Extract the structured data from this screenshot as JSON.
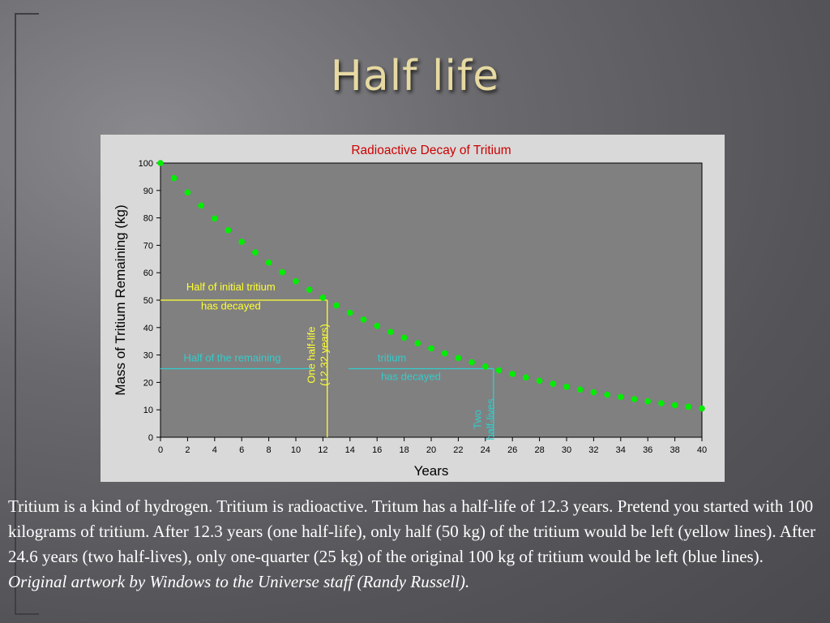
{
  "slide": {
    "title": "Half life",
    "paragraph": "Tritium is a kind of hydrogen. Tritium is radioactive. Tritum has a half-life of 12.3 years. Pretend you started with 100 kilograms of tritium. After 12.3 years (one half-life), only half (50 kg) of the tritium would be left (yellow lines). After 24.6 years (two half-lives), only one-quarter (25 kg) of the original 100 kg of tritium would be left (blue lines).",
    "credit": "Original artwork by Windows to the Universe staff (Randy Russell)."
  },
  "colors": {
    "points": "#00ee00",
    "yellow": "#ffff33",
    "blue": "#33cccc",
    "plot_bg": "#808080",
    "frame_bg": "#d9d9d9",
    "title": "#cc0000"
  },
  "chart_data": {
    "type": "scatter",
    "title": "Radioactive Decay of Tritium",
    "xlabel": "Years",
    "ylabel": "Mass of Tritium Remaining (kg)",
    "xlim": [
      0,
      40
    ],
    "ylim": [
      0,
      100
    ],
    "xticks": [
      0,
      2,
      4,
      6,
      8,
      10,
      12,
      14,
      16,
      18,
      20,
      22,
      24,
      26,
      28,
      30,
      32,
      34,
      36,
      38,
      40
    ],
    "yticks": [
      0,
      10,
      20,
      30,
      40,
      50,
      60,
      70,
      80,
      90,
      100
    ],
    "grid": false,
    "x": [
      0,
      1,
      2,
      3,
      4,
      5,
      6,
      7,
      8,
      9,
      10,
      11,
      12,
      13,
      14,
      15,
      16,
      17,
      18,
      19,
      20,
      21,
      22,
      23,
      24,
      25,
      26,
      27,
      28,
      29,
      30,
      31,
      32,
      33,
      34,
      35,
      36,
      37,
      38,
      39,
      40
    ],
    "y": [
      100,
      94.5,
      89.3,
      84.5,
      79.8,
      75.5,
      71.3,
      67.4,
      63.7,
      60.2,
      56.9,
      53.8,
      50.9,
      48.1,
      45.4,
      42.9,
      40.6,
      38.4,
      36.3,
      34.3,
      32.4,
      30.6,
      28.9,
      27.3,
      25.8,
      24.4,
      23.1,
      21.8,
      20.6,
      19.5,
      18.4,
      17.4,
      16.4,
      15.5,
      14.7,
      13.9,
      13.1,
      12.4,
      11.7,
      11.1,
      10.5
    ],
    "annotations": {
      "one_half_life": {
        "x": 12.32,
        "y": 50,
        "label_line1": "Half of initial tritium",
        "label_line2": "has decayed",
        "vertical_line1": "One half-life",
        "vertical_line2": "(12.32 years)"
      },
      "two_half_lives": {
        "x": 24.6,
        "y": 25,
        "label_left": "Half of the remaining",
        "label_right": "tritium",
        "label_line2": "has decayed",
        "vertical_line1": "Two",
        "vertical_line2": "half-lives"
      }
    }
  }
}
